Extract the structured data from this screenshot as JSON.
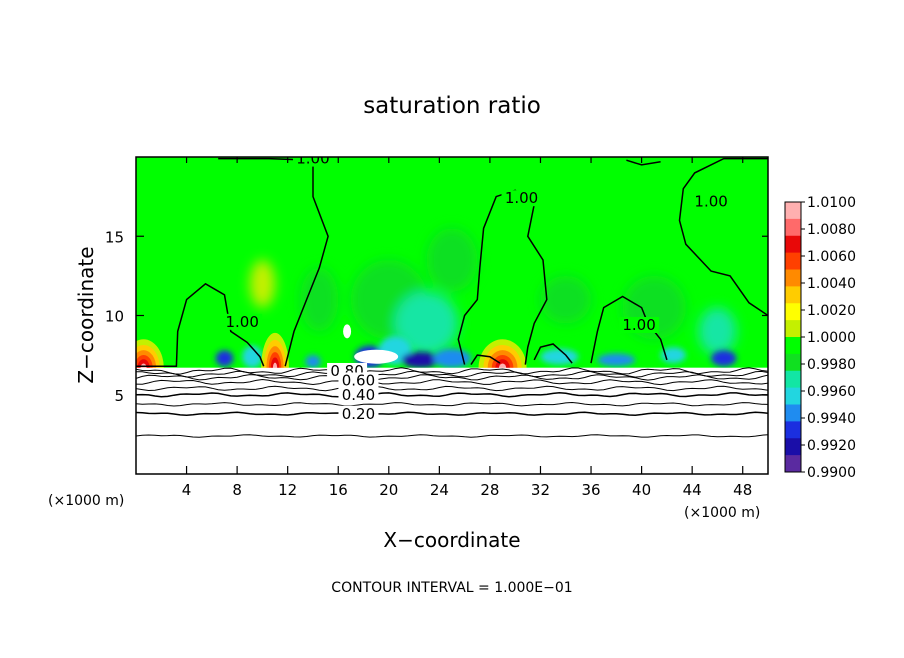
{
  "chart_data": {
    "type": "heatmap",
    "title": "saturation ratio",
    "xlabel": "X−coordinate",
    "ylabel": "Z−coordinate",
    "x_unit": "(×1000 m)",
    "y_unit": "(×1000 m)",
    "xlim": [
      0,
      50
    ],
    "ylim": [
      0,
      20
    ],
    "x_ticks": [
      4,
      8,
      12,
      16,
      20,
      24,
      28,
      32,
      36,
      40,
      44,
      48
    ],
    "y_ticks": [
      5,
      10,
      15
    ],
    "footer": "CONTOUR INTERVAL = 1.000E−01",
    "colorbar": {
      "range": [
        0.99,
        1.01
      ],
      "tick_labels": [
        "1.0100",
        "1.0080",
        "1.0060",
        "1.0040",
        "1.0020",
        "1.0000",
        "0.9980",
        "0.9960",
        "0.9940",
        "0.9920",
        "0.9900"
      ],
      "colors": [
        "#5a2aa0",
        "#1a0ea8",
        "#1b2fe0",
        "#1f8cf0",
        "#22d6e0",
        "#12e6a4",
        "#10e020",
        "#00ff00",
        "#c4f000",
        "#ffff00",
        "#ffcc00",
        "#ff8a00",
        "#ff4000",
        "#e80808",
        "#ff6a6a",
        "#ffb0b0"
      ]
    },
    "contour_labels": [
      {
        "text": "1.00",
        "x": 14.0,
        "y": 19.9
      },
      {
        "text": "1.00",
        "x": 30.5,
        "y": 17.4
      },
      {
        "text": "1.00",
        "x": 45.5,
        "y": 17.2
      },
      {
        "text": "1.00",
        "x": 8.4,
        "y": 9.6
      },
      {
        "text": "1.00",
        "x": 39.8,
        "y": 9.4
      },
      {
        "text": "0.80",
        "x": 16.7,
        "y": 6.5
      },
      {
        "text": "0.60",
        "x": 17.6,
        "y": 5.9
      },
      {
        "text": "0.40",
        "x": 17.6,
        "y": 5.0
      },
      {
        "text": "0.20",
        "x": 17.6,
        "y": 3.8
      }
    ],
    "contour_levels": [
      {
        "level": 0.2,
        "z": 3.8
      },
      {
        "level": 0.4,
        "z": 5.0
      },
      {
        "level": 0.6,
        "z": 5.8
      },
      {
        "level": 0.8,
        "z": 6.5
      }
    ],
    "cloud_top": 6.7
  }
}
